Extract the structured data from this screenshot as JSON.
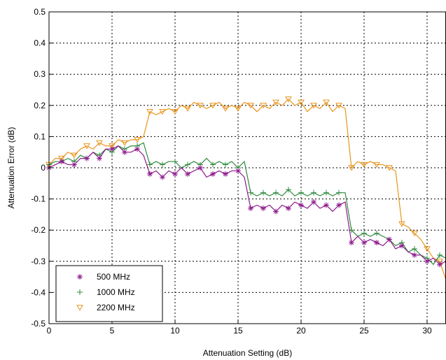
{
  "chart_data": {
    "type": "line",
    "title": "",
    "xlabel": "Attenuation Setting (dB)",
    "ylabel": "Attenuation Error (dB)",
    "xlim": [
      0,
      31.5
    ],
    "ylim": [
      -0.5,
      0.5
    ],
    "xticks": [
      0,
      5,
      10,
      15,
      20,
      25,
      30
    ],
    "yticks": [
      -0.5,
      -0.4,
      -0.3,
      -0.2,
      -0.1,
      0,
      0.1,
      0.2,
      0.3,
      0.4,
      0.5
    ],
    "grid": true,
    "legend_position": "bottom-left",
    "marker_step": 2,
    "series": [
      {
        "name": "500 MHz",
        "color": "#8e1a8e",
        "marker": "asterisk",
        "x": [
          0,
          0.5,
          1,
          1.5,
          2,
          2.5,
          3,
          3.5,
          4,
          4.5,
          5,
          5.5,
          6,
          6.5,
          7,
          7.5,
          8,
          8.5,
          9,
          9.5,
          10,
          10.5,
          11,
          11.5,
          12,
          12.5,
          13,
          13.5,
          14,
          14.5,
          15,
          15.5,
          16,
          16.5,
          17,
          17.5,
          18,
          18.5,
          19,
          19.5,
          20,
          20.5,
          21,
          21.5,
          22,
          22.5,
          23,
          23.5,
          24,
          24.5,
          25,
          25.5,
          26,
          26.5,
          27,
          27.5,
          28,
          28.5,
          29,
          29.5,
          30,
          30.5,
          31,
          31.5
        ],
        "values": [
          0.0,
          0.01,
          0.02,
          0.01,
          0.01,
          0.03,
          0.03,
          0.05,
          0.03,
          0.06,
          0.06,
          0.07,
          0.05,
          0.05,
          0.06,
          0.04,
          -0.02,
          -0.01,
          -0.03,
          -0.01,
          -0.02,
          0.0,
          -0.02,
          -0.01,
          0.0,
          -0.03,
          -0.02,
          -0.01,
          -0.02,
          -0.01,
          -0.01,
          -0.03,
          -0.13,
          -0.12,
          -0.13,
          -0.12,
          -0.14,
          -0.12,
          -0.13,
          -0.11,
          -0.12,
          -0.13,
          -0.11,
          -0.13,
          -0.12,
          -0.14,
          -0.12,
          -0.11,
          -0.24,
          -0.22,
          -0.24,
          -0.23,
          -0.24,
          -0.25,
          -0.23,
          -0.26,
          -0.25,
          -0.27,
          -0.28,
          -0.28,
          -0.3,
          -0.29,
          -0.31,
          -0.3
        ]
      },
      {
        "name": "1000 MHz",
        "color": "#2e8b3e",
        "marker": "plus",
        "x": [
          0,
          0.5,
          1,
          1.5,
          2,
          2.5,
          3,
          3.5,
          4,
          4.5,
          5,
          5.5,
          6,
          6.5,
          7,
          7.5,
          8,
          8.5,
          9,
          9.5,
          10,
          10.5,
          11,
          11.5,
          12,
          12.5,
          13,
          13.5,
          14,
          14.5,
          15,
          15.5,
          16,
          16.5,
          17,
          17.5,
          18,
          18.5,
          19,
          19.5,
          20,
          20.5,
          21,
          21.5,
          22,
          22.5,
          23,
          23.5,
          24,
          24.5,
          25,
          25.5,
          26,
          26.5,
          27,
          27.5,
          28,
          28.5,
          29,
          29.5,
          30,
          30.5,
          31,
          31.5
        ],
        "values": [
          0.01,
          0.02,
          0.02,
          0.03,
          0.02,
          0.04,
          0.03,
          0.05,
          0.04,
          0.06,
          0.05,
          0.07,
          0.06,
          0.07,
          0.07,
          0.08,
          0.01,
          0.02,
          0.01,
          0.02,
          0.02,
          0.0,
          0.01,
          0.02,
          0.01,
          0.03,
          0.01,
          0.02,
          0.01,
          0.02,
          0.0,
          0.02,
          -0.08,
          -0.09,
          -0.08,
          -0.09,
          -0.08,
          -0.09,
          -0.07,
          -0.09,
          -0.08,
          -0.09,
          -0.08,
          -0.09,
          -0.08,
          -0.09,
          -0.08,
          -0.08,
          -0.2,
          -0.22,
          -0.21,
          -0.22,
          -0.21,
          -0.22,
          -0.23,
          -0.25,
          -0.24,
          -0.27,
          -0.26,
          -0.28,
          -0.29,
          -0.31,
          -0.28,
          -0.29
        ]
      },
      {
        "name": "2200 MHz",
        "color": "#e8951e",
        "marker": "triangle-down",
        "x": [
          0,
          0.5,
          1,
          1.5,
          2,
          2.5,
          3,
          3.5,
          4,
          4.5,
          5,
          5.5,
          6,
          6.5,
          7,
          7.5,
          8,
          8.5,
          9,
          9.5,
          10,
          10.5,
          11,
          11.5,
          12,
          12.5,
          13,
          13.5,
          14,
          14.5,
          15,
          15.5,
          16,
          16.5,
          17,
          17.5,
          18,
          18.5,
          19,
          19.5,
          20,
          20.5,
          21,
          21.5,
          22,
          22.5,
          23,
          23.5,
          24,
          24.5,
          25,
          25.5,
          26,
          26.5,
          27,
          27.5,
          28,
          28.5,
          29,
          29.5,
          30,
          30.5,
          31,
          31.5
        ],
        "values": [
          0.01,
          0.03,
          0.03,
          0.05,
          0.04,
          0.06,
          0.07,
          0.06,
          0.08,
          0.07,
          0.07,
          0.09,
          0.08,
          0.09,
          0.09,
          0.1,
          0.18,
          0.17,
          0.18,
          0.19,
          0.18,
          0.2,
          0.19,
          0.21,
          0.2,
          0.19,
          0.2,
          0.21,
          0.19,
          0.2,
          0.19,
          0.21,
          0.2,
          0.18,
          0.2,
          0.19,
          0.21,
          0.2,
          0.22,
          0.2,
          0.21,
          0.18,
          0.2,
          0.19,
          0.21,
          0.18,
          0.2,
          0.19,
          0.0,
          0.02,
          0.01,
          0.02,
          0.01,
          0.01,
          0.0,
          -0.01,
          -0.18,
          -0.19,
          -0.21,
          -0.23,
          -0.26,
          -0.29,
          -0.3,
          -0.36
        ]
      }
    ]
  }
}
